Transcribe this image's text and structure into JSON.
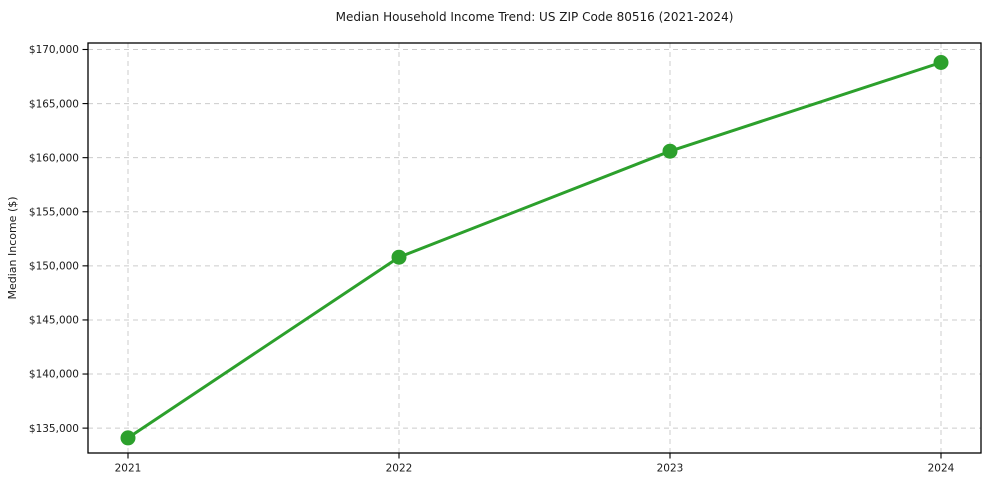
{
  "chart_data": {
    "type": "line",
    "title": "Median Household Income Trend: US ZIP Code 80516 (2021-2024)",
    "xlabel": "",
    "ylabel": "Median Income ($)",
    "x": [
      2021,
      2022,
      2023,
      2024
    ],
    "x_tick_labels": [
      "2021",
      "2022",
      "2023",
      "2024"
    ],
    "series": [
      {
        "name": "Median Household Income",
        "values": [
          134100,
          150800,
          160600,
          168800
        ]
      }
    ],
    "y_ticks": [
      135000,
      140000,
      145000,
      150000,
      155000,
      160000,
      165000,
      170000
    ],
    "y_tick_labels": [
      "$135,000",
      "$140,000",
      "$145,000",
      "$150,000",
      "$155,000",
      "$160,000",
      "$165,000",
      "$170,000"
    ],
    "ylim": [
      132700,
      170600
    ],
    "grid": true,
    "grid_style": "dashed",
    "legend": "none",
    "colors": {
      "line": "#2ca02c",
      "marker": "#2ca02c",
      "grid": "#cccccc",
      "spine": "#000000",
      "tick": "#000000",
      "text": "#1a1a1a",
      "background": "#ffffff"
    }
  }
}
